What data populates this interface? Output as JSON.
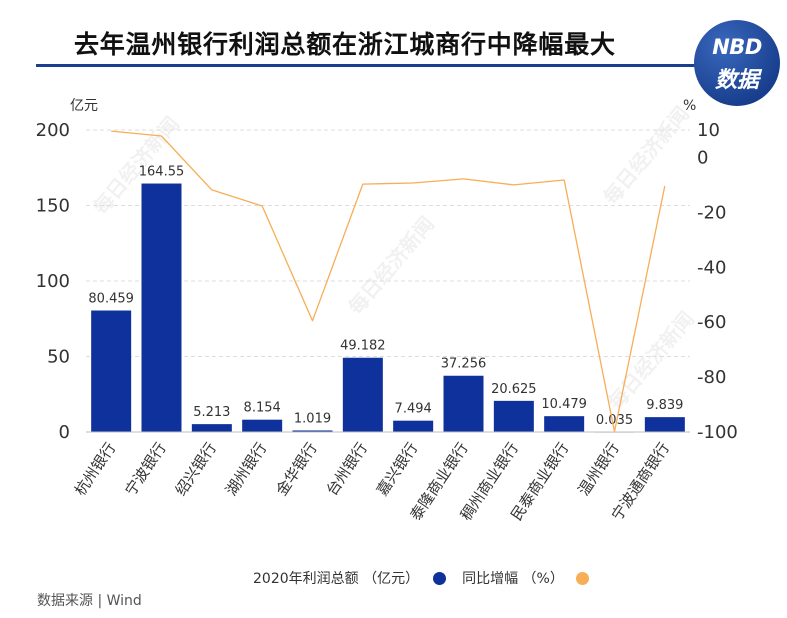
{
  "logo": {
    "brand": "NBD",
    "sub": "数据"
  },
  "source": "数据来源 | Wind",
  "watermark": "每日经济新闻",
  "colors": {
    "title_rule": "#1b3f8f",
    "logo_bg": "#163c8a"
  },
  "chart_data": {
    "type": "bar",
    "title": "去年温州银行利润总额在浙江城商行中降幅最大",
    "categories": [
      "杭州银行",
      "宁波银行",
      "绍兴银行",
      "湖州银行",
      "金华银行",
      "台州银行",
      "嘉兴银行",
      "泰隆商业银行",
      "稠州商业银行",
      "民泰商业银行",
      "温州银行",
      "宁波通商银行"
    ],
    "series": [
      {
        "name": "2020年利润总额 （亿元）",
        "type": "bar",
        "axis": "left",
        "color": "#0f319b",
        "values": [
          80.459,
          164.55,
          5.213,
          8.154,
          1.019,
          49.182,
          7.494,
          37.256,
          20.625,
          10.479,
          0.035,
          9.839
        ]
      },
      {
        "name": "同比增幅 （%）",
        "type": "line",
        "axis": "right",
        "color": "#f8ad57",
        "values": [
          9.6,
          7.8,
          -11.8,
          -17.7,
          -59.5,
          -9.7,
          -9.3,
          -7.8,
          -10.0,
          -8.2,
          -99.8,
          -10.4
        ]
      }
    ],
    "y_left": {
      "label": "亿元",
      "range": [
        0,
        200
      ],
      "ticks": [
        200,
        150,
        100,
        50,
        0
      ]
    },
    "y_right": {
      "label": "%",
      "range": [
        -100,
        10
      ],
      "ticks": [
        10,
        0,
        -20,
        -40,
        -60,
        -80,
        -100
      ]
    },
    "grid": true,
    "legend": "bottom"
  }
}
